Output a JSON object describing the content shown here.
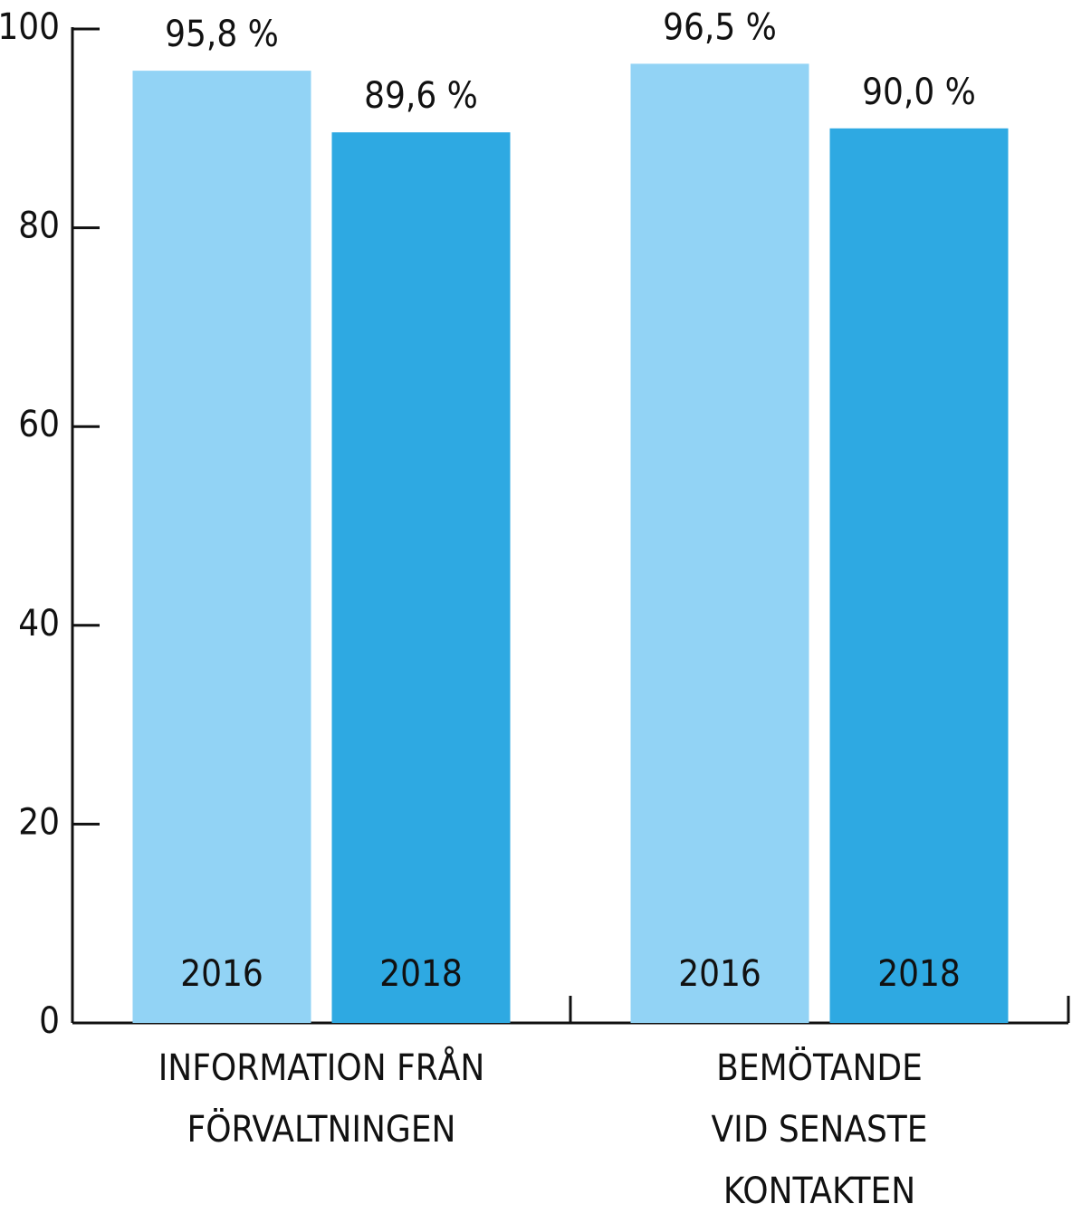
{
  "chart_data": {
    "type": "bar",
    "categories": [
      [
        "INFORMATION FRÅN",
        "FÖRVALTNINGEN"
      ],
      [
        "BEMÖTANDE",
        "VID SENASTE",
        "KONTAKTEN"
      ]
    ],
    "series": [
      {
        "name": "2016",
        "color": "#92d3f5",
        "values": [
          95.8,
          96.5
        ],
        "value_labels": [
          "95,8 %",
          "96,5 %"
        ]
      },
      {
        "name": "2018",
        "color": "#2ea9e2",
        "values": [
          89.6,
          90.0
        ],
        "value_labels": [
          "89,6 %",
          "90,0 %"
        ]
      }
    ],
    "ylim": [
      0,
      100
    ],
    "yticks": [
      0,
      20,
      40,
      60,
      80,
      100
    ]
  }
}
